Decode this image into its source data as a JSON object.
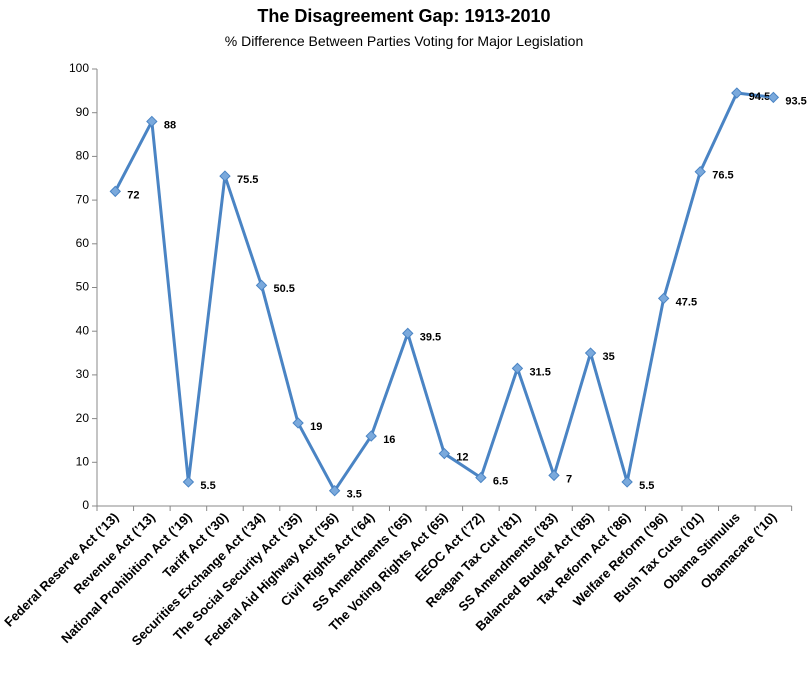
{
  "chart_data": {
    "type": "line",
    "title": "The Disagreement Gap: 1913-2010",
    "subtitle": "% Difference Between Parties Voting for Major Legislation",
    "categories": [
      "Federal Reserve Act (’13)",
      "Revenue Act (’13)",
      "National Prohibition Act (’19)",
      "Tariff Act (’30)",
      "Securities Exchange Act (’34)",
      "The Social Security Act (’35)",
      "Federal Aid Highway Act (’56)",
      "Civil Rights Act (’64)",
      "SS Amendments (’65)",
      "The Voting Rights Act (65)",
      "EEOC Act (’72)",
      "Reagan Tax Cut (’81)",
      "SS Amendments (’83)",
      "Balanced Budget Act (’85)",
      "Tax Reform Act (’86)",
      "Welfare Reform (’96)",
      "Bush Tax Cuts (’01)",
      "Obama Stimulus",
      "Obamacare (’10)"
    ],
    "values": [
      72,
      88,
      5.5,
      75.5,
      50.5,
      19,
      3.5,
      16,
      39.5,
      12,
      6.5,
      31.5,
      7,
      35,
      5.5,
      47.5,
      76.5,
      94.5,
      93.5
    ],
    "color": "#4a84c4",
    "marker_color": "#7aa9dc",
    "ylim": [
      0,
      100
    ],
    "yticks": [
      0,
      10,
      20,
      30,
      40,
      50,
      60,
      70,
      80,
      90,
      100
    ],
    "grid": false
  }
}
